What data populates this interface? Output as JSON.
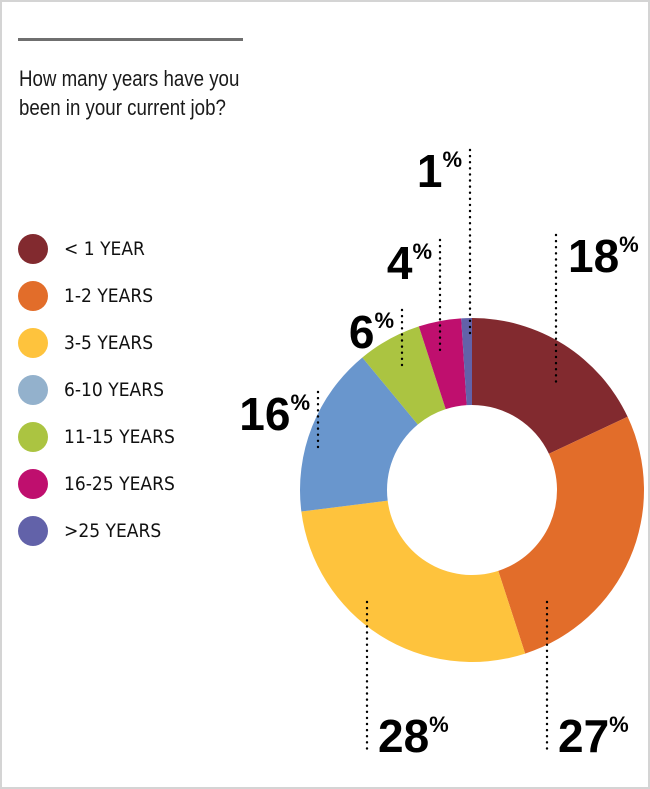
{
  "title": "How many years have you been in your current job?",
  "chart_data": {
    "type": "pie",
    "donut": true,
    "title": "How many years have you been in your current job?",
    "legend_position": "left",
    "categories": [
      "< 1 YEAR",
      "1-2 YEARS",
      "3-5 YEARS",
      "6-10 YEARS",
      "11-15 YEARS",
      "16-25 YEARS",
      ">25 YEARS"
    ],
    "values": [
      18,
      27,
      28,
      16,
      6,
      4,
      1
    ],
    "labels": [
      "18",
      "27",
      "28",
      "16",
      "6",
      "4",
      "1"
    ],
    "unit": "%",
    "colors": [
      "#822a2f",
      "#e26d2a",
      "#fec33d",
      "#6996cd",
      "#abc441",
      "#bf0f6e",
      "#6262a9"
    ],
    "legend_colors": [
      "#822a2f",
      "#e26d2a",
      "#fec33d",
      "#93b1cc",
      "#abc441",
      "#bf0f6e",
      "#6262a9"
    ]
  }
}
